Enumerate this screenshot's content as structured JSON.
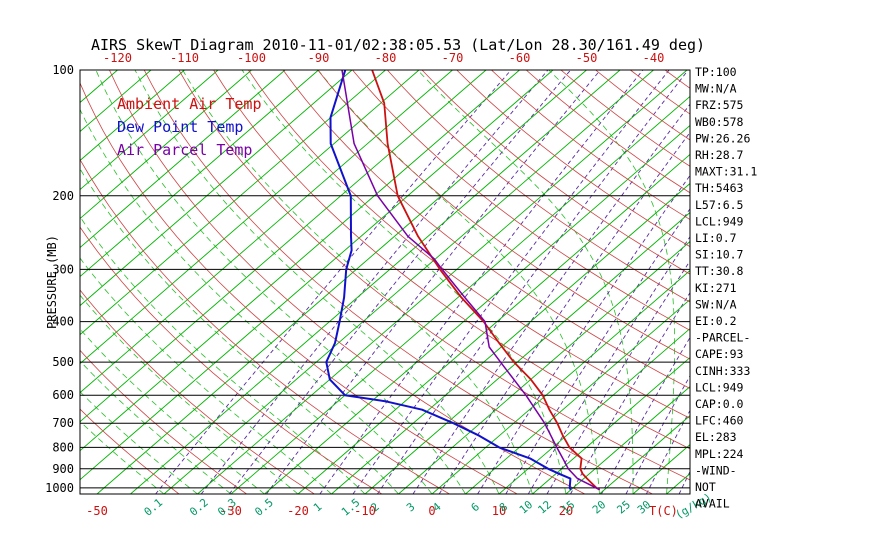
{
  "title": "AIRS SkewT Diagram 2010-11-01/02:38:05.53 (Lat/Lon 28.30/161.49 deg)",
  "legend": [
    {
      "label": "Ambient Air Temp",
      "color": "#cc1111"
    },
    {
      "label": "Dew Point Temp",
      "color": "#1111cc"
    },
    {
      "label": "Air Parcel Temp",
      "color": "#7a00a8"
    }
  ],
  "stats": [
    "TP:100",
    "MW:N/A",
    "FRZ:575",
    "WB0:578",
    "PW:26.26",
    "RH:28.7",
    "MAXT:31.1",
    "TH:5463",
    "L57:6.5",
    "LCL:949",
    "LI:0.7",
    "SI:10.7",
    "TT:30.8",
    "KI:271",
    "SW:N/A",
    "EI:0.2",
    "-PARCEL-",
    "CAPE:93",
    "CINH:333",
    "LCL:949",
    "CAP:0.0",
    "LFC:460",
    "EL:283",
    "MPL:224",
    "-WIND-",
    "NOT",
    "AVAIL"
  ],
  "chart_data": {
    "type": "line",
    "subtype": "skew-t-log-p",
    "title": "AIRS SkewT Diagram 2010-11-01/02:38:05.53 (Lat/Lon 28.30/161.49 deg)",
    "xlabel": "T(C)",
    "ylabel": "PRESSURE (MB)",
    "temp_unit_label": "T(C)",
    "mixing_unit_label": "(g/kg)",
    "pressure_range": [
      100,
      1034
    ],
    "pressure_ticks": [
      100,
      200,
      300,
      400,
      500,
      600,
      700,
      800,
      900,
      1000
    ],
    "top_temp_ticks": [
      -120,
      -110,
      -100,
      -90,
      -80,
      -70,
      -60,
      -50,
      -40
    ],
    "bottom_temp_ticks": [
      -50,
      -30,
      -20,
      -10,
      0,
      10,
      20
    ],
    "mixing_ratio_ticks": [
      0.1,
      0.2,
      0.3,
      0.5,
      1,
      1.5,
      2,
      3,
      4,
      6,
      8,
      10,
      12,
      15,
      20,
      25,
      30
    ],
    "axis_colors": {
      "temp_axis_color": "#cc1111",
      "mixing_axis_color": "#009966",
      "pressure_axis_color": "#000000"
    },
    "series": [
      {
        "name": "Ambient Air Temp",
        "color": "#cc1111",
        "width": 1.8,
        "points": [
          [
            1010,
            24.3
          ],
          [
            1000,
            23.5
          ],
          [
            950,
            20.5
          ],
          [
            925,
            19.0
          ],
          [
            900,
            17.8
          ],
          [
            850,
            16.2
          ],
          [
            800,
            12.5
          ],
          [
            750,
            9.5
          ],
          [
            700,
            6.5
          ],
          [
            650,
            3.0
          ],
          [
            600,
            -0.5
          ],
          [
            550,
            -5.0
          ],
          [
            500,
            -10.5
          ],
          [
            450,
            -16.0
          ],
          [
            400,
            -22.0
          ],
          [
            350,
            -29.5
          ],
          [
            300,
            -37.5
          ],
          [
            250,
            -46.5
          ],
          [
            200,
            -56.5
          ],
          [
            150,
            -67.0
          ],
          [
            120,
            -74.5
          ],
          [
            100,
            -82.0
          ]
        ]
      },
      {
        "name": "Dew Point Temp",
        "color": "#1111cc",
        "width": 2,
        "points": [
          [
            1010,
            20.0
          ],
          [
            1000,
            19.5
          ],
          [
            950,
            18.0
          ],
          [
            925,
            15.5
          ],
          [
            900,
            13.0
          ],
          [
            850,
            8.5
          ],
          [
            800,
            2.0
          ],
          [
            750,
            -3.0
          ],
          [
            700,
            -9.0
          ],
          [
            650,
            -16.0
          ],
          [
            620,
            -23.0
          ],
          [
            600,
            -30.0
          ],
          [
            550,
            -35.0
          ],
          [
            500,
            -38.5
          ],
          [
            450,
            -40.5
          ],
          [
            400,
            -43.5
          ],
          [
            350,
            -47.0
          ],
          [
            300,
            -51.5
          ],
          [
            270,
            -54.0
          ],
          [
            250,
            -56.5
          ],
          [
            200,
            -63.5
          ],
          [
            150,
            -75.5
          ],
          [
            130,
            -80.0
          ],
          [
            100,
            -86.0
          ]
        ]
      },
      {
        "name": "Air Parcel Temp",
        "color": "#7a00a8",
        "width": 1.5,
        "points": [
          [
            1010,
            24.3
          ],
          [
            949,
            19.0
          ],
          [
            900,
            16.0
          ],
          [
            850,
            13.4
          ],
          [
            800,
            10.6
          ],
          [
            700,
            4.6
          ],
          [
            600,
            -3.0
          ],
          [
            500,
            -12.5
          ],
          [
            460,
            -16.8
          ],
          [
            400,
            -21.8
          ],
          [
            350,
            -29.0
          ],
          [
            300,
            -37.2
          ],
          [
            283,
            -40.2
          ],
          [
            250,
            -48.0
          ],
          [
            200,
            -59.5
          ],
          [
            150,
            -72.0
          ],
          [
            100,
            -86.5
          ]
        ]
      }
    ],
    "background": {
      "isotherm_step": 5,
      "isotherm_range": [
        -120,
        40
      ],
      "isotherm_color": "#00b400",
      "dry_adiabat_step": 10,
      "dry_adiabat_range": [
        -40,
        190
      ],
      "dry_adiabat_color": "#cc4444",
      "moist_adiabat_step": 5,
      "moist_adiabat_range": [
        -40,
        60
      ],
      "moist_adiabat_color": "#00b400",
      "mixing_ratio_values": [
        0.1,
        0.2,
        0.3,
        0.5,
        1,
        1.5,
        2,
        3,
        4,
        6,
        8,
        10,
        12,
        15,
        20,
        25,
        30,
        40
      ],
      "mixing_ratio_color": "#5b2da0",
      "pressure_line_color": "#000000"
    }
  }
}
